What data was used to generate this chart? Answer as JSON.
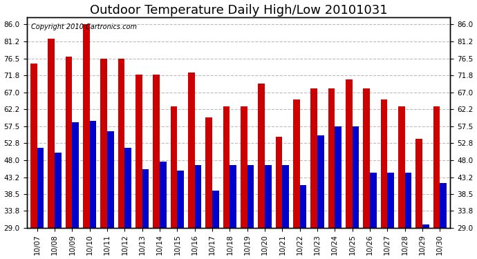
{
  "title": "Outdoor Temperature Daily High/Low 20101031",
  "copyright": "Copyright 2010 Cartronics.com",
  "dates": [
    "10/07",
    "10/08",
    "10/09",
    "10/10",
    "10/11",
    "10/12",
    "10/13",
    "10/14",
    "10/15",
    "10/16",
    "10/17",
    "10/18",
    "10/19",
    "10/20",
    "10/21",
    "10/22",
    "10/23",
    "10/24",
    "10/25",
    "10/26",
    "10/27",
    "10/28",
    "10/29",
    "10/30"
  ],
  "highs": [
    75.0,
    82.0,
    77.0,
    86.0,
    76.5,
    76.5,
    72.0,
    72.0,
    63.0,
    72.5,
    60.0,
    63.0,
    63.0,
    69.5,
    54.5,
    65.0,
    68.0,
    68.0,
    70.5,
    68.0,
    65.0,
    63.0,
    54.0,
    63.0
  ],
  "lows": [
    51.5,
    50.0,
    58.5,
    59.0,
    56.0,
    51.5,
    45.5,
    47.5,
    45.0,
    46.5,
    39.5,
    46.5,
    46.5,
    46.5,
    46.5,
    41.0,
    55.0,
    57.5,
    57.5,
    44.5,
    44.5,
    44.5,
    30.0,
    41.5
  ],
  "high_color": "#cc0000",
  "low_color": "#0000cc",
  "bg_color": "#ffffff",
  "grid_color": "#bbbbbb",
  "ylim_min": 29.0,
  "ylim_max": 88.0,
  "yticks": [
    29.0,
    33.8,
    38.5,
    43.2,
    48.0,
    52.8,
    57.5,
    62.2,
    67.0,
    71.8,
    76.5,
    81.2,
    86.0
  ],
  "bar_width": 0.38,
  "title_fontsize": 13,
  "tick_fontsize": 7.5,
  "copyright_fontsize": 7
}
